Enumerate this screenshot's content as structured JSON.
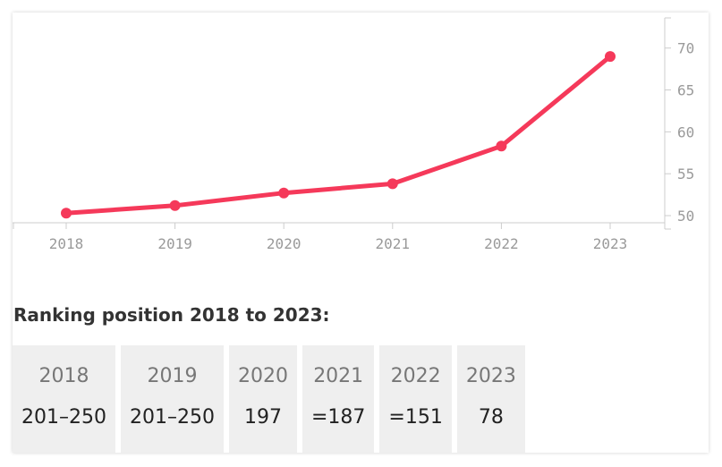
{
  "chart_data": {
    "type": "line",
    "x": [
      "2018",
      "2019",
      "2020",
      "2021",
      "2022",
      "2023"
    ],
    "series": [
      {
        "values": [
          50.3,
          51.2,
          52.7,
          53.8,
          58.3,
          69.0
        ]
      }
    ],
    "yticks": [
      50,
      55,
      60,
      65,
      70
    ],
    "ylim": [
      48.4,
      73.6
    ],
    "y_axis_side": "right",
    "grid": false,
    "line_color": "#f5395a",
    "title": "",
    "xlabel": "",
    "ylabel": ""
  },
  "ranking": {
    "title": "Ranking position 2018 to 2023:",
    "items": [
      {
        "year": "2018",
        "value": "201–250"
      },
      {
        "year": "2019",
        "value": "201–250"
      },
      {
        "year": "2020",
        "value": "197"
      },
      {
        "year": "2021",
        "value": "=187"
      },
      {
        "year": "2022",
        "value": "=151"
      },
      {
        "year": "2023",
        "value": "78"
      }
    ]
  }
}
